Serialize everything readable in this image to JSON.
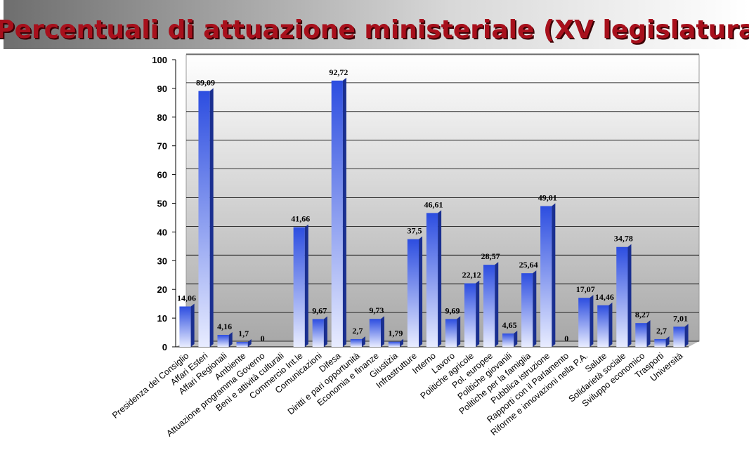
{
  "chart_data": {
    "type": "bar",
    "title": "Percentuali di attuazione ministeriale (XV legislatura)",
    "categories": [
      "Presidenza del Consiglio",
      "Affari Esteri",
      "Affari Regionali",
      "Ambiente",
      "Attuazione programma Governo",
      "Beni e attività culturali",
      "Commercio Int.le",
      "Comunicazioni",
      "Difesa",
      "Diritti e pari opportunità",
      "Economia e finanze",
      "Giustizia",
      "Infrastrutture",
      "Interno",
      "Lavoro",
      "Politiche agricole",
      "Pol. europee",
      "Politiche giovanili",
      "Politiche per la famiglia",
      "Pubblica istruzione",
      "Rapporti con il Parlamento",
      "Riforme e innovazioni nella P.A.",
      "Salute",
      "Solidarietà sociale",
      "Sviluppo economico",
      "Trasporti",
      "Università"
    ],
    "values": [
      14.06,
      89.09,
      4.16,
      1.7,
      0,
      null,
      41.66,
      9.67,
      92.72,
      2.7,
      9.73,
      1.79,
      37.5,
      46.61,
      9.69,
      22.12,
      28.57,
      4.65,
      25.64,
      49.01,
      0,
      17.07,
      14.46,
      34.78,
      8.27,
      2.7,
      7.01
    ],
    "value_labels": [
      "14,06",
      "89,09",
      "4,16",
      "1,7",
      "0",
      null,
      "41,66",
      "9,67",
      "92,72",
      "2,7",
      "9,73",
      "1,79",
      "37,5",
      "46,61",
      "9,69",
      "22,12",
      "28,57",
      "4,65",
      "25,64",
      "49,01",
      "0",
      "17,07",
      "14,46",
      "34,78",
      "8,27",
      "2,7",
      "7,01"
    ],
    "color": "#3a5fe0",
    "ylim": [
      0,
      100
    ],
    "yticks": [
      0,
      10,
      20,
      30,
      40,
      50,
      60,
      70,
      80,
      90,
      100
    ],
    "grid": true
  }
}
